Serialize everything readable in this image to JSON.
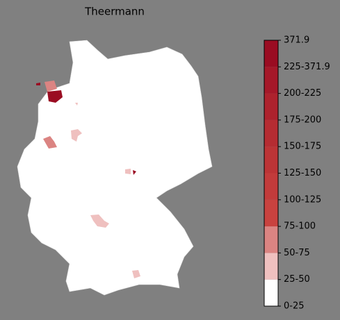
{
  "title": "Theermann",
  "colorbar": {
    "labels": [
      "0-25",
      "25-50",
      "50-75",
      "75-100",
      "100-125",
      "125-150",
      "150-175",
      "175-200",
      "200-225",
      "225-371.9",
      "371.9"
    ],
    "colors": [
      "#ffffff",
      "#efc0bf",
      "#db8482",
      "#c9423f",
      "#c23b3b",
      "#bc3436",
      "#b52c32",
      "#ad222d",
      "#a51829",
      "#9a0c22"
    ]
  }
}
